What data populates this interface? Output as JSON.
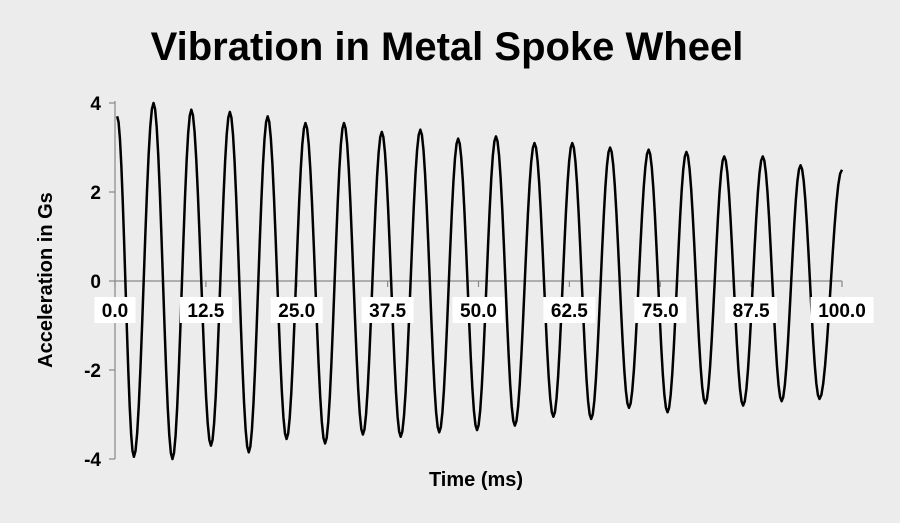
{
  "chart_data": {
    "type": "line",
    "title": "Vibration in Metal Spoke Wheel",
    "xlabel": "Time (ms)",
    "ylabel": "Acceleration in Gs",
    "xlim": [
      0,
      100
    ],
    "ylim": [
      -4,
      4
    ],
    "x_ticks": [
      "0.0",
      "12.5",
      "25.0",
      "37.5",
      "50.0",
      "62.5",
      "75.0",
      "87.5",
      "100.0"
    ],
    "y_ticks": [
      "4",
      "2",
      "0",
      "-2",
      "-4"
    ],
    "grid": false,
    "legend": "none",
    "line_color": "#000000",
    "series": [
      {
        "peaks": [
          [
            0.3,
            3.7
          ],
          [
            5.3,
            4.0
          ],
          [
            10.5,
            3.85
          ],
          [
            15.8,
            3.8
          ],
          [
            21.0,
            3.7
          ],
          [
            26.2,
            3.55
          ],
          [
            31.5,
            3.55
          ],
          [
            36.7,
            3.35
          ],
          [
            42.0,
            3.4
          ],
          [
            47.2,
            3.2
          ],
          [
            52.4,
            3.25
          ],
          [
            57.7,
            3.1
          ],
          [
            62.9,
            3.1
          ],
          [
            68.1,
            3.0
          ],
          [
            73.4,
            2.95
          ],
          [
            78.6,
            2.9
          ],
          [
            83.8,
            2.8
          ],
          [
            89.1,
            2.8
          ],
          [
            94.3,
            2.6
          ],
          [
            100.0,
            2.5
          ]
        ],
        "troughs": [
          [
            2.6,
            -3.95
          ],
          [
            7.9,
            -4.0
          ],
          [
            13.2,
            -3.7
          ],
          [
            18.4,
            -3.85
          ],
          [
            23.6,
            -3.55
          ],
          [
            28.9,
            -3.65
          ],
          [
            34.1,
            -3.45
          ],
          [
            39.3,
            -3.5
          ],
          [
            44.6,
            -3.4
          ],
          [
            49.8,
            -3.35
          ],
          [
            55.0,
            -3.25
          ],
          [
            60.3,
            -3.05
          ],
          [
            65.5,
            -3.1
          ],
          [
            70.7,
            -2.85
          ],
          [
            76.0,
            -2.95
          ],
          [
            81.2,
            -2.75
          ],
          [
            86.4,
            -2.8
          ],
          [
            91.7,
            -2.7
          ],
          [
            96.9,
            -2.65
          ]
        ]
      }
    ]
  }
}
